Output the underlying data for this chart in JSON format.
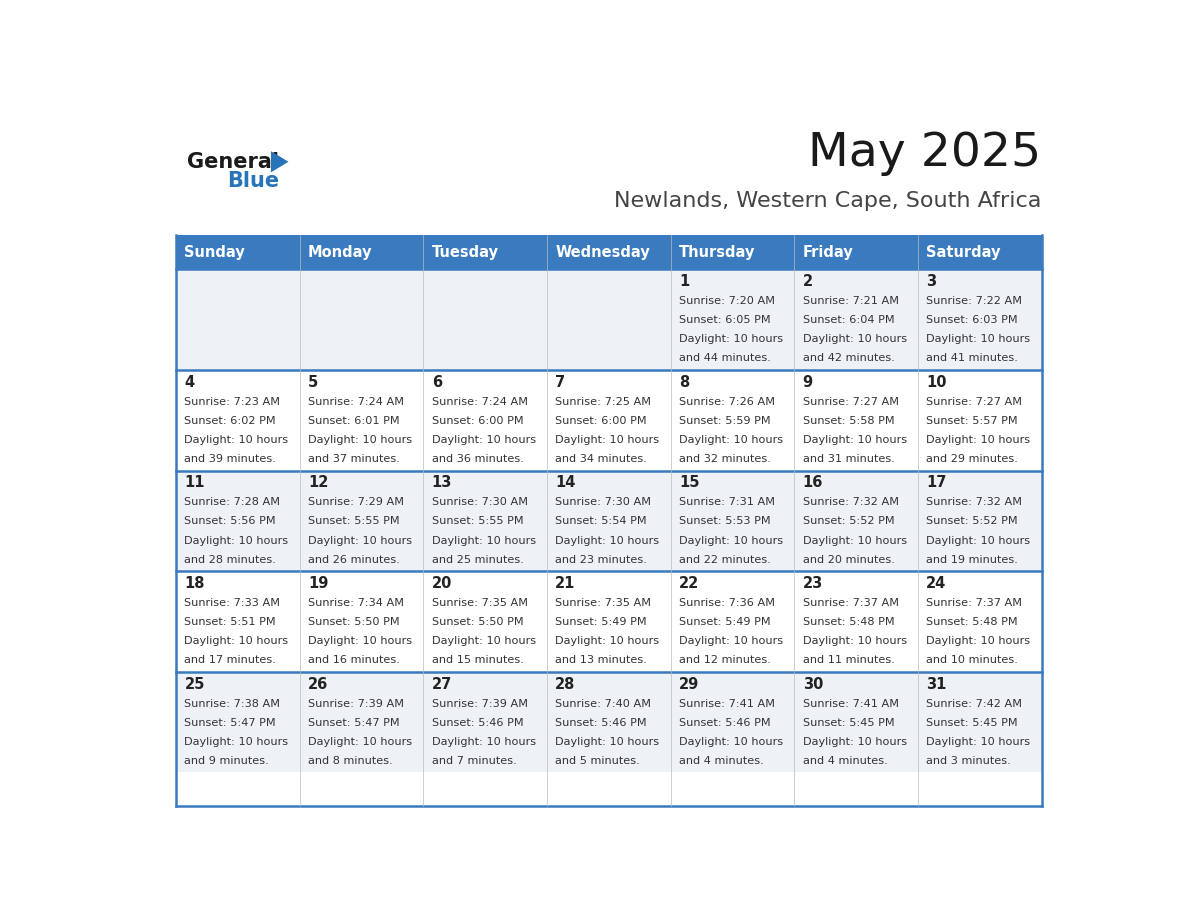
{
  "title": "May 2025",
  "subtitle": "Newlands, Western Cape, South Africa",
  "days_of_week": [
    "Sunday",
    "Monday",
    "Tuesday",
    "Wednesday",
    "Thursday",
    "Friday",
    "Saturday"
  ],
  "header_bg": "#3a7abf",
  "header_text": "#ffffff",
  "cell_bg_odd": "#eef2f7",
  "cell_bg_even": "#ffffff",
  "row_line_color": "#3a7abf",
  "text_color": "#333333",
  "day_num_color": "#222222",
  "calendar_data": [
    [
      null,
      null,
      null,
      null,
      {
        "day": 1,
        "sunrise": "7:20 AM",
        "sunset": "6:05 PM",
        "daylight": "10 hours and 44 minutes."
      },
      {
        "day": 2,
        "sunrise": "7:21 AM",
        "sunset": "6:04 PM",
        "daylight": "10 hours and 42 minutes."
      },
      {
        "day": 3,
        "sunrise": "7:22 AM",
        "sunset": "6:03 PM",
        "daylight": "10 hours and 41 minutes."
      }
    ],
    [
      {
        "day": 4,
        "sunrise": "7:23 AM",
        "sunset": "6:02 PM",
        "daylight": "10 hours and 39 minutes."
      },
      {
        "day": 5,
        "sunrise": "7:24 AM",
        "sunset": "6:01 PM",
        "daylight": "10 hours and 37 minutes."
      },
      {
        "day": 6,
        "sunrise": "7:24 AM",
        "sunset": "6:00 PM",
        "daylight": "10 hours and 36 minutes."
      },
      {
        "day": 7,
        "sunrise": "7:25 AM",
        "sunset": "6:00 PM",
        "daylight": "10 hours and 34 minutes."
      },
      {
        "day": 8,
        "sunrise": "7:26 AM",
        "sunset": "5:59 PM",
        "daylight": "10 hours and 32 minutes."
      },
      {
        "day": 9,
        "sunrise": "7:27 AM",
        "sunset": "5:58 PM",
        "daylight": "10 hours and 31 minutes."
      },
      {
        "day": 10,
        "sunrise": "7:27 AM",
        "sunset": "5:57 PM",
        "daylight": "10 hours and 29 minutes."
      }
    ],
    [
      {
        "day": 11,
        "sunrise": "7:28 AM",
        "sunset": "5:56 PM",
        "daylight": "10 hours and 28 minutes."
      },
      {
        "day": 12,
        "sunrise": "7:29 AM",
        "sunset": "5:55 PM",
        "daylight": "10 hours and 26 minutes."
      },
      {
        "day": 13,
        "sunrise": "7:30 AM",
        "sunset": "5:55 PM",
        "daylight": "10 hours and 25 minutes."
      },
      {
        "day": 14,
        "sunrise": "7:30 AM",
        "sunset": "5:54 PM",
        "daylight": "10 hours and 23 minutes."
      },
      {
        "day": 15,
        "sunrise": "7:31 AM",
        "sunset": "5:53 PM",
        "daylight": "10 hours and 22 minutes."
      },
      {
        "day": 16,
        "sunrise": "7:32 AM",
        "sunset": "5:52 PM",
        "daylight": "10 hours and 20 minutes."
      },
      {
        "day": 17,
        "sunrise": "7:32 AM",
        "sunset": "5:52 PM",
        "daylight": "10 hours and 19 minutes."
      }
    ],
    [
      {
        "day": 18,
        "sunrise": "7:33 AM",
        "sunset": "5:51 PM",
        "daylight": "10 hours and 17 minutes."
      },
      {
        "day": 19,
        "sunrise": "7:34 AM",
        "sunset": "5:50 PM",
        "daylight": "10 hours and 16 minutes."
      },
      {
        "day": 20,
        "sunrise": "7:35 AM",
        "sunset": "5:50 PM",
        "daylight": "10 hours and 15 minutes."
      },
      {
        "day": 21,
        "sunrise": "7:35 AM",
        "sunset": "5:49 PM",
        "daylight": "10 hours and 13 minutes."
      },
      {
        "day": 22,
        "sunrise": "7:36 AM",
        "sunset": "5:49 PM",
        "daylight": "10 hours and 12 minutes."
      },
      {
        "day": 23,
        "sunrise": "7:37 AM",
        "sunset": "5:48 PM",
        "daylight": "10 hours and 11 minutes."
      },
      {
        "day": 24,
        "sunrise": "7:37 AM",
        "sunset": "5:48 PM",
        "daylight": "10 hours and 10 minutes."
      }
    ],
    [
      {
        "day": 25,
        "sunrise": "7:38 AM",
        "sunset": "5:47 PM",
        "daylight": "10 hours and 9 minutes."
      },
      {
        "day": 26,
        "sunrise": "7:39 AM",
        "sunset": "5:47 PM",
        "daylight": "10 hours and 8 minutes."
      },
      {
        "day": 27,
        "sunrise": "7:39 AM",
        "sunset": "5:46 PM",
        "daylight": "10 hours and 7 minutes."
      },
      {
        "day": 28,
        "sunrise": "7:40 AM",
        "sunset": "5:46 PM",
        "daylight": "10 hours and 5 minutes."
      },
      {
        "day": 29,
        "sunrise": "7:41 AM",
        "sunset": "5:46 PM",
        "daylight": "10 hours and 4 minutes."
      },
      {
        "day": 30,
        "sunrise": "7:41 AM",
        "sunset": "5:45 PM",
        "daylight": "10 hours and 4 minutes."
      },
      {
        "day": 31,
        "sunrise": "7:42 AM",
        "sunset": "5:45 PM",
        "daylight": "10 hours and 3 minutes."
      }
    ]
  ]
}
